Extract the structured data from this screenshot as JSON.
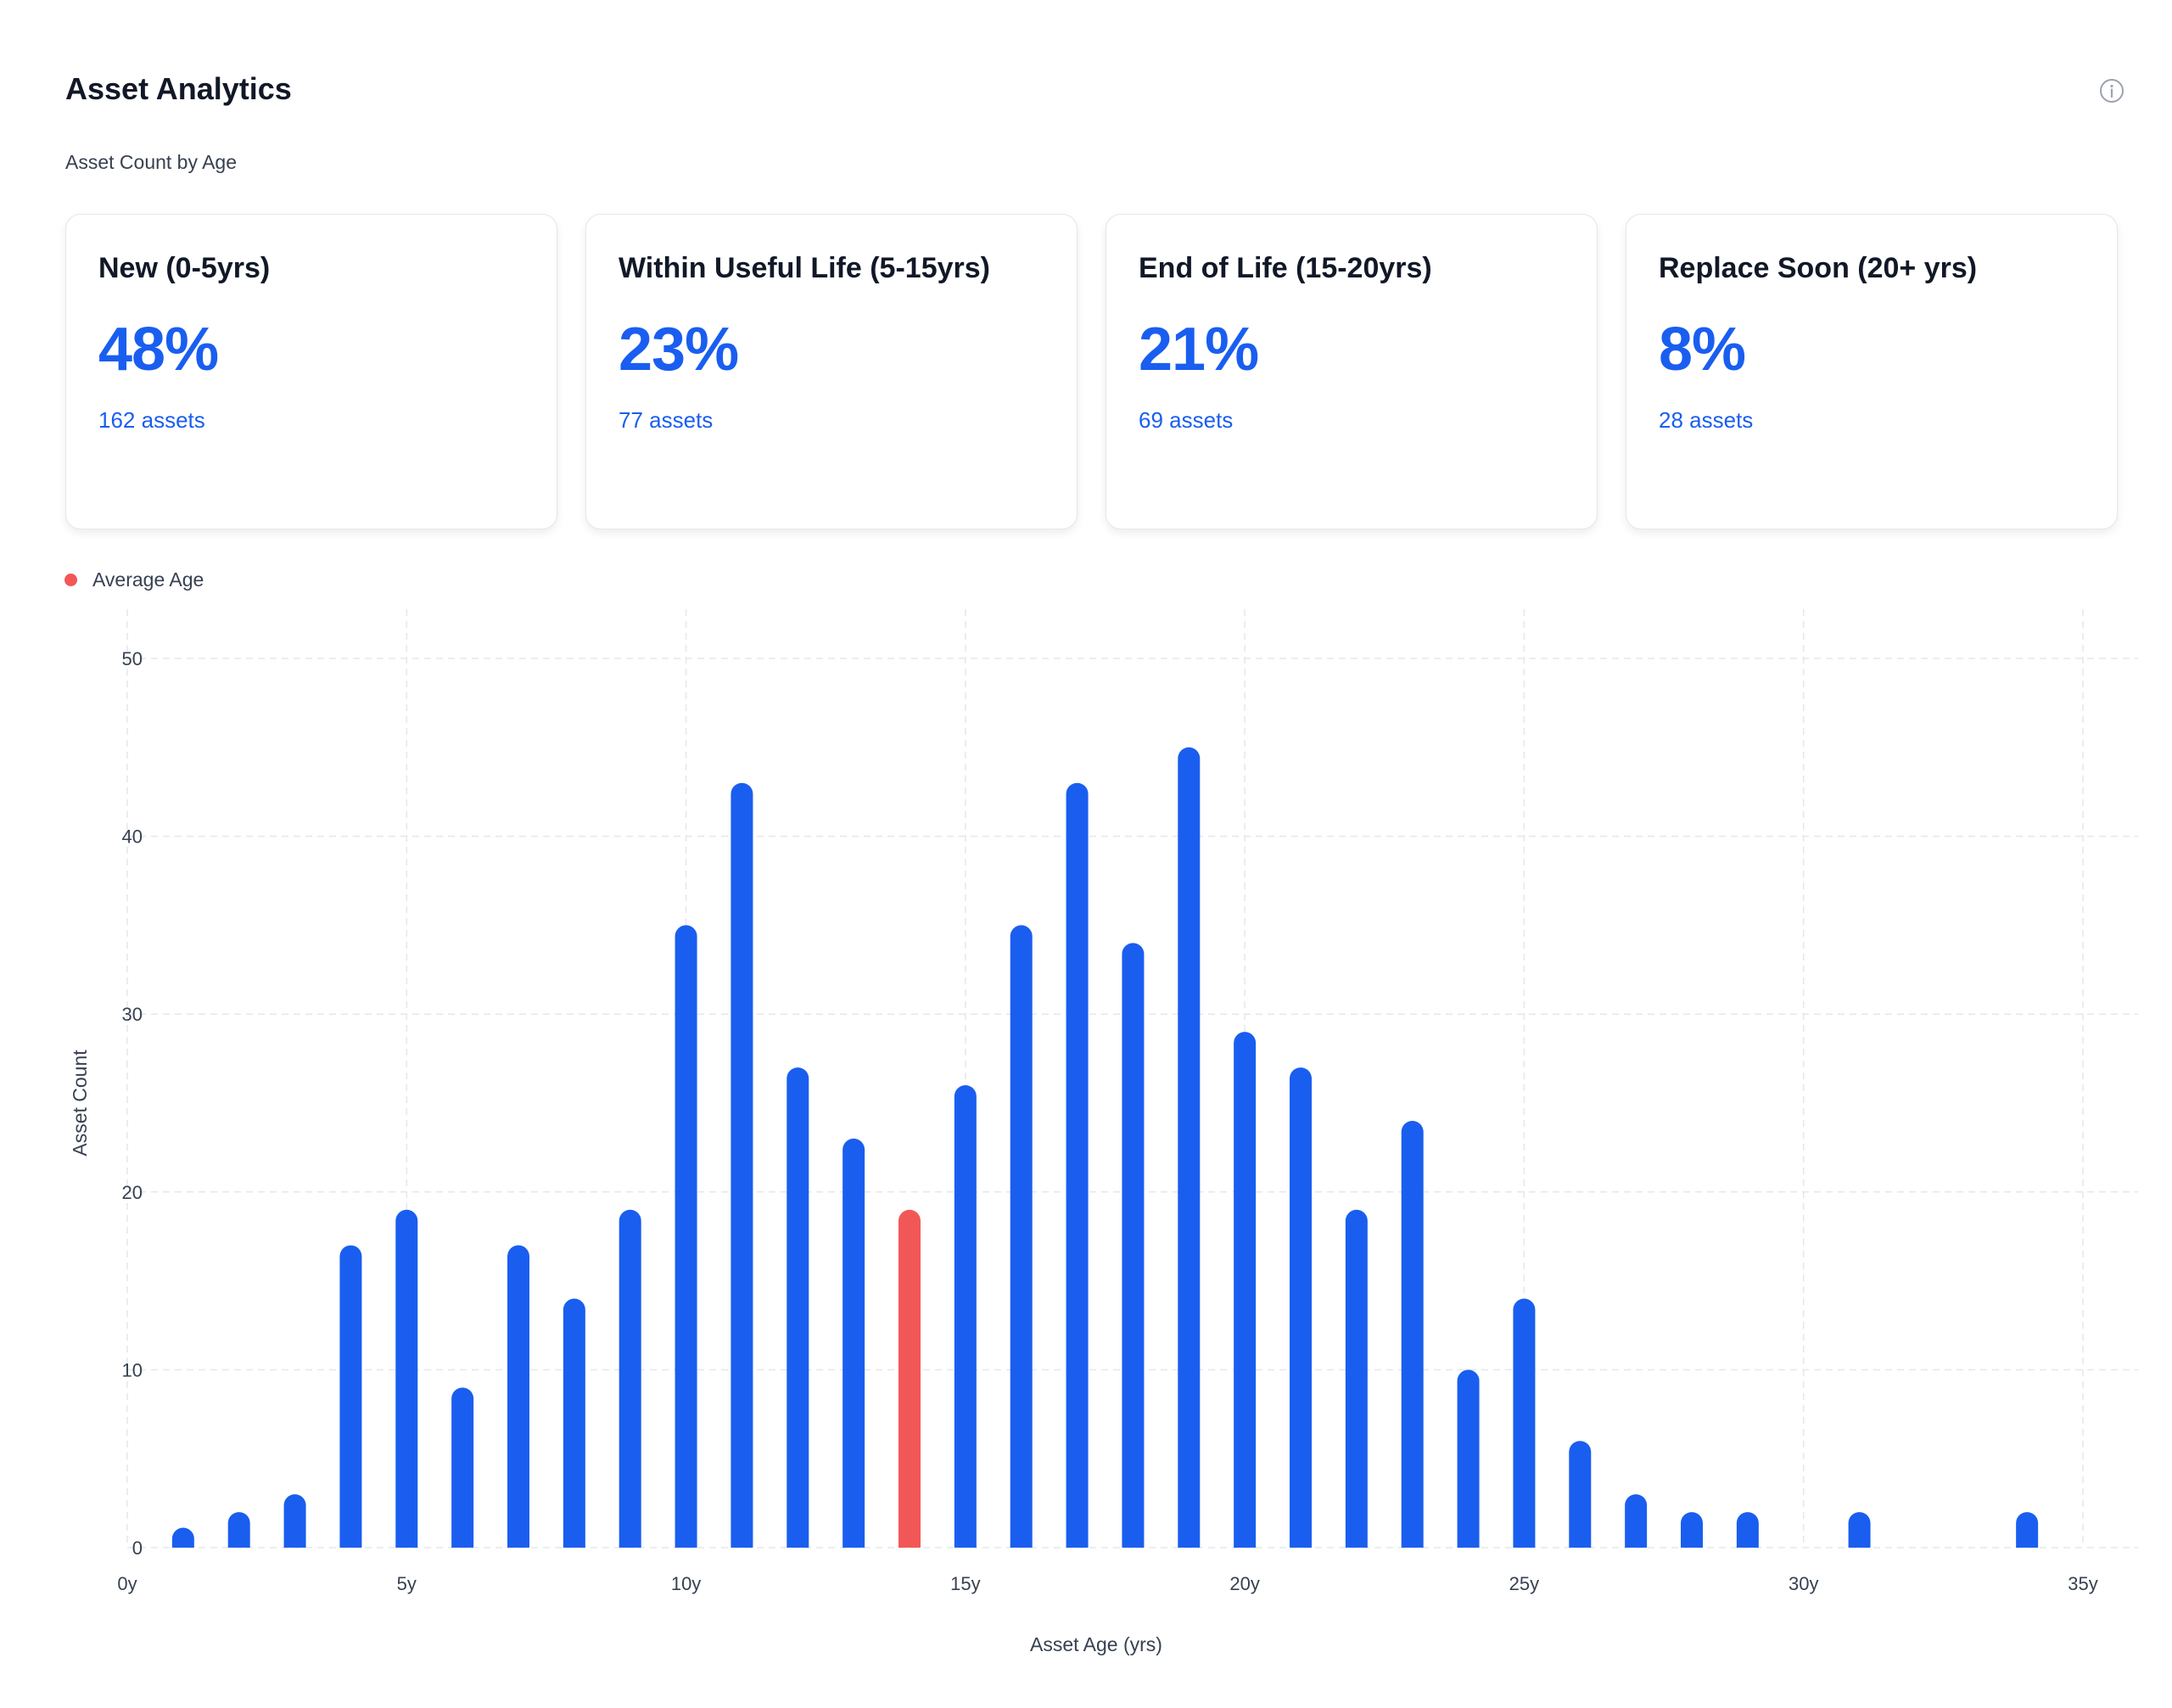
{
  "header": {
    "title": "Asset Analytics",
    "subtitle": "Asset Count by Age",
    "info_icon": "info-icon"
  },
  "cards": [
    {
      "title": "New (0-5yrs)",
      "percent": "48%",
      "assets": "162 assets"
    },
    {
      "title": "Within Useful Life (5-15yrs)",
      "percent": "23%",
      "assets": "77 assets"
    },
    {
      "title": "End of Life (15-20yrs)",
      "percent": "21%",
      "assets": "69 assets"
    },
    {
      "title": "Replace Soon (20+ yrs)",
      "percent": "8%",
      "assets": "28 assets"
    }
  ],
  "legend": {
    "label": "Average Age",
    "color": "#f25757"
  },
  "colors": {
    "bar": "#1a5ef0",
    "highlight": "#f25757",
    "grid": "#e5e7eb"
  },
  "chart_data": {
    "type": "bar",
    "title": "",
    "xlabel": "Asset Age (yrs)",
    "ylabel": "Asset Count",
    "xlim": [
      0,
      35
    ],
    "ylim": [
      0,
      50
    ],
    "x_ticks": [
      "0y",
      "5y",
      "10y",
      "15y",
      "20y",
      "25y",
      "30y",
      "35y"
    ],
    "x_tick_values": [
      0,
      5,
      10,
      15,
      20,
      25,
      30,
      35
    ],
    "y_ticks": [
      0,
      10,
      20,
      30,
      40,
      50
    ],
    "grid": true,
    "highlight_x": 14,
    "series": [
      {
        "x": [
          1,
          2,
          3,
          4,
          5,
          6,
          7,
          8,
          9,
          10,
          11,
          12,
          13,
          14,
          15,
          16,
          17,
          18,
          19,
          20,
          21,
          22,
          23,
          24,
          25,
          26,
          27,
          28,
          29,
          31,
          34
        ],
        "values": [
          1,
          2,
          3,
          17,
          19,
          9,
          17,
          14,
          19,
          35,
          43,
          27,
          23,
          19,
          26,
          35,
          43,
          34,
          45,
          29,
          27,
          19,
          24,
          10,
          14,
          6,
          3,
          2,
          2,
          2,
          2
        ]
      }
    ]
  }
}
